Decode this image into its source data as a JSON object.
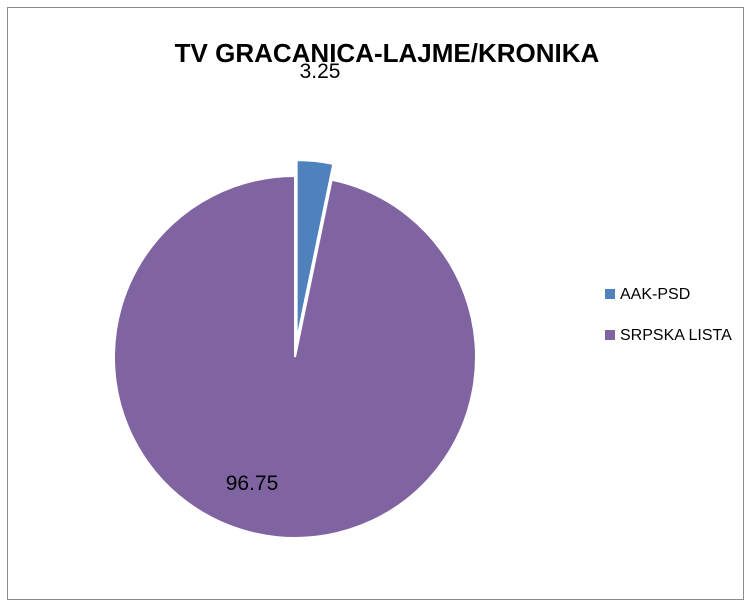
{
  "chart_data": {
    "type": "pie",
    "title": "TV GRACANICA-LAJME/KRONIKA",
    "slices": [
      {
        "label": "AAK-PSD",
        "value": 3.25,
        "color": "#4F81BD",
        "exploded": true
      },
      {
        "label": "SRPSKA LISTA",
        "value": 96.75,
        "color": "#8064A2",
        "exploded": false
      }
    ],
    "legend_position": "right",
    "data_labels": [
      "3.25",
      "96.75"
    ]
  }
}
